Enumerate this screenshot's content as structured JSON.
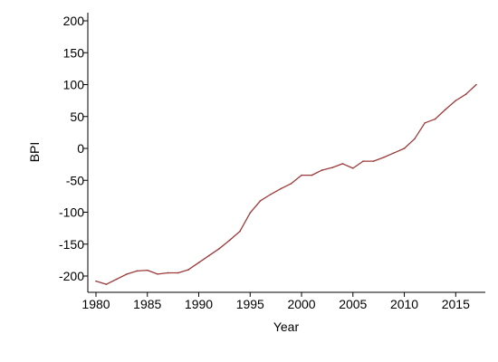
{
  "chart_data": {
    "type": "line",
    "title": "",
    "xlabel": "Year",
    "ylabel": "BPI",
    "xlim": [
      1980,
      2017
    ],
    "ylim": [
      -220,
      200
    ],
    "x_ticks": [
      1980,
      1985,
      1990,
      1995,
      2000,
      2005,
      2010,
      2015
    ],
    "y_ticks": [
      -200,
      -150,
      -100,
      -50,
      0,
      50,
      100,
      150,
      200
    ],
    "grid": false,
    "legend": "none",
    "series": [
      {
        "color": "#9b3a3a",
        "x": [
          1980,
          1981,
          1982,
          1983,
          1984,
          1985,
          1986,
          1987,
          1988,
          1989,
          1990,
          1991,
          1992,
          1993,
          1994,
          1995,
          1996,
          1997,
          1998,
          1999,
          2000,
          2001,
          2002,
          2003,
          2004,
          2005,
          2006,
          2007,
          2008,
          2009,
          2010,
          2011,
          2012,
          2013,
          2014,
          2015,
          2016,
          2017
        ],
        "y": [
          -208,
          -213,
          -205,
          -197,
          -192,
          -191,
          -197,
          -195,
          -195,
          -190,
          -179,
          -168,
          -157,
          -144,
          -130,
          -101,
          -82,
          -72,
          -63,
          -55,
          -42,
          -42,
          -34,
          -30,
          -24,
          -31,
          -20,
          -20,
          -14,
          -7,
          0,
          15,
          40,
          46,
          61,
          75,
          85,
          100
        ]
      }
    ]
  }
}
